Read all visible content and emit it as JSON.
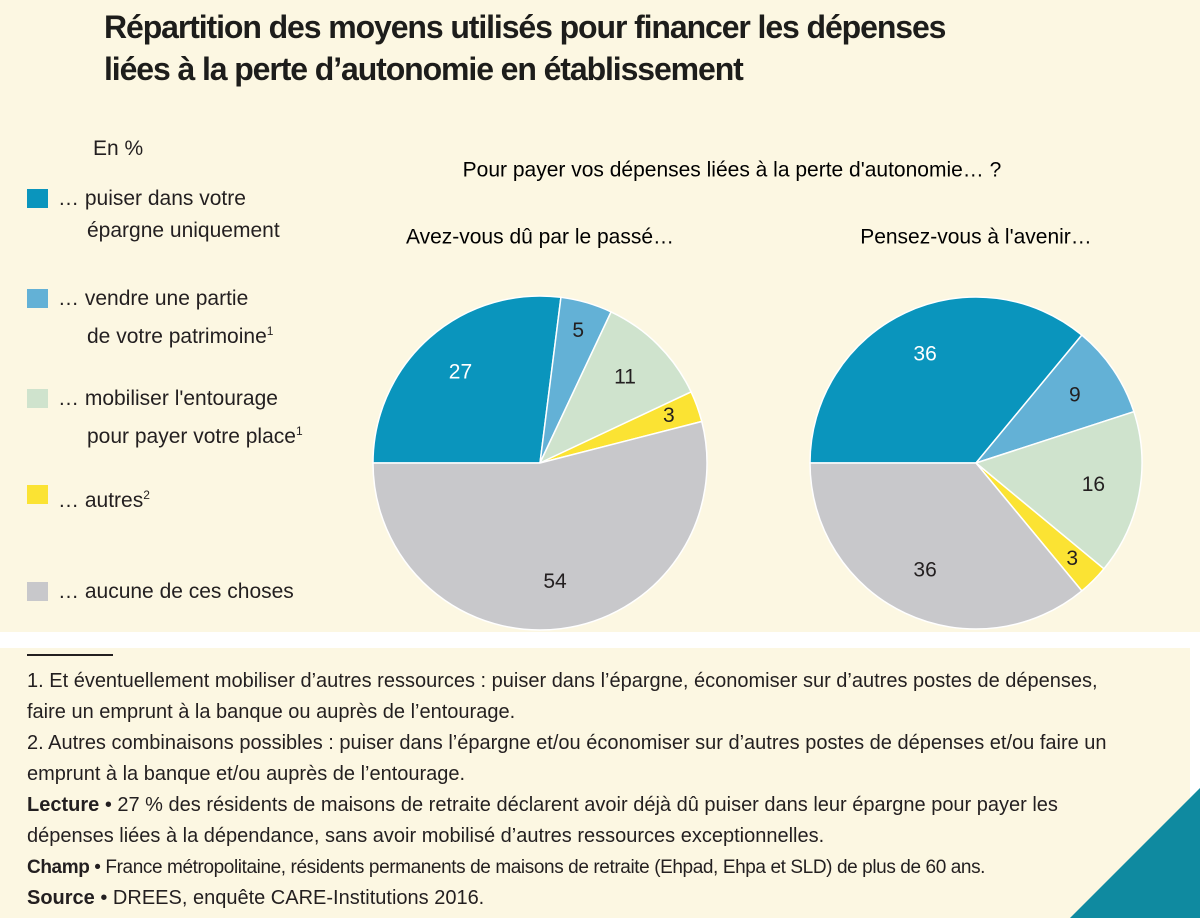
{
  "title": [
    "Répartition des moyens utilisés pour financer les dépenses",
    "liées à la perte d’autonomie en établissement"
  ],
  "unit": "En %",
  "question": "Pour payer vos dépenses liées à la perte d'autonomie… ?",
  "legend": {
    "names": [
      [
        "… puiser dans votre",
        "épargne uniquement"
      ],
      [
        "… vendre une partie",
        "de votre patrimoine"
      ],
      [
        "… mobiliser l'entourage",
        "pour payer votre place"
      ],
      [
        "… autres"
      ],
      [
        "… aucune de ces choses"
      ]
    ],
    "notes": [
      null,
      "1",
      "1",
      "2",
      null
    ],
    "colors": [
      "#0a95bd",
      "#63b1d6",
      "#cfe3cd",
      "#fbe333",
      "#c8c8cb"
    ]
  },
  "chart_data": [
    {
      "type": "pie",
      "subtitle": "Avez-vous dû par le passé…",
      "values": [
        27,
        5,
        11,
        3,
        54
      ]
    },
    {
      "type": "pie",
      "subtitle": "Pensez-vous à l'avenir…",
      "values": [
        36,
        9,
        16,
        3,
        36
      ]
    }
  ],
  "footnotes": [
    "1. Et éventuellement mobiliser d’autres ressources : puiser dans l’épargne, économiser sur d’autres postes de dépenses, faire un emprunt à la banque ou auprès de l’entourage.",
    "2. Autres combinaisons possibles : puiser dans l’épargne et/ou économiser sur d’autres postes de dépenses et/ou faire un emprunt à la banque et/ou auprès de l’entourage."
  ],
  "lecture": {
    "label": "Lecture",
    "text": "• 27 % des résidents de maisons de retraite déclarent avoir déjà dû puiser dans leur épargne pour payer les dépenses liées à la dépendance, sans avoir mobilisé d’autres ressources exceptionnelles."
  },
  "champ": {
    "label": "Champ",
    "text": "• France métropolitaine, résidents permanents de maisons de retraite (Ehpad, Ehpa et SLD) de plus de 60 ans."
  },
  "source": {
    "label": "Source",
    "text": "• DREES, enquête CARE-Institutions 2016."
  }
}
